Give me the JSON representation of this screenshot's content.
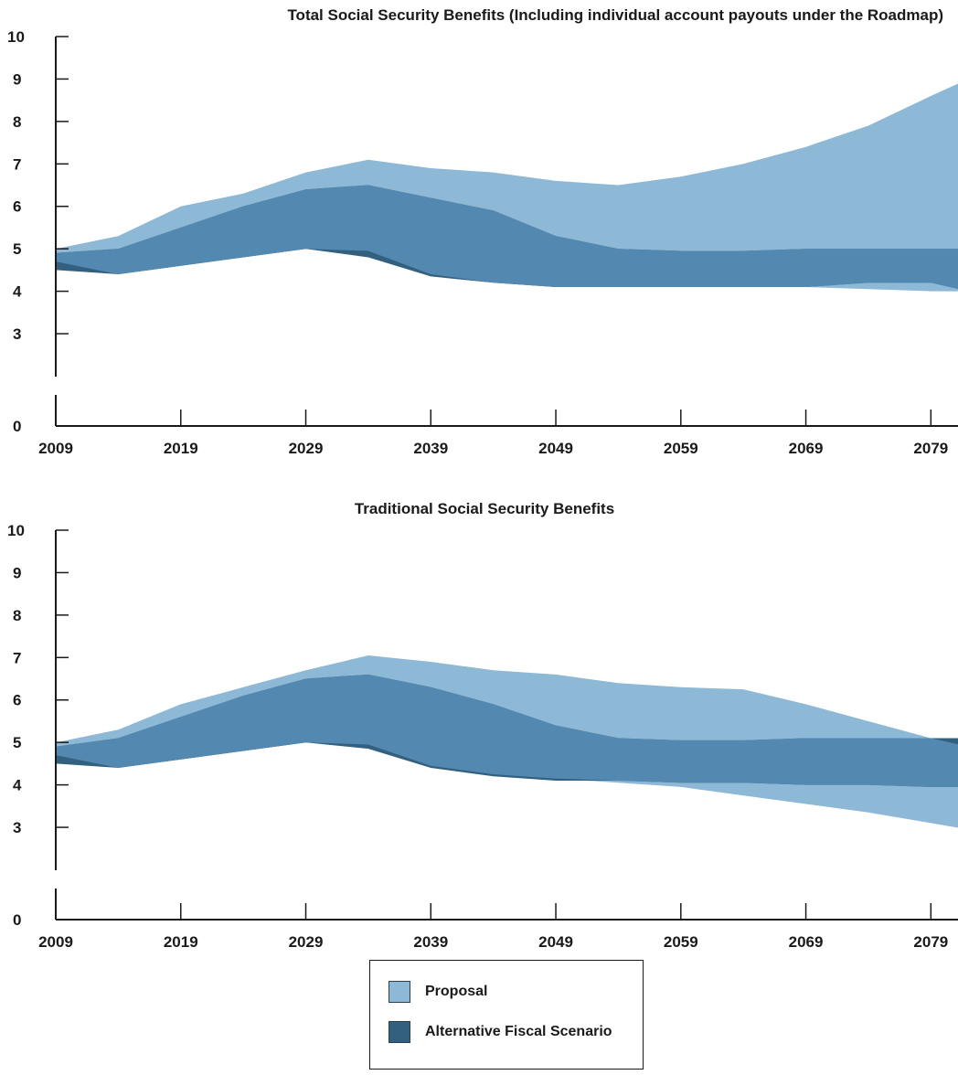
{
  "colors": {
    "proposal": "#8db8d6",
    "alt_scenario": "#33607f",
    "overlap": "#5389b0",
    "axis": "#1a1a1a"
  },
  "legend": {
    "items": [
      {
        "label": "Proposal",
        "color": "#8db8d6"
      },
      {
        "label": "Alternative Fiscal Scenario",
        "color": "#33607f"
      }
    ]
  },
  "chart_data": [
    {
      "type": "area",
      "title": "Total Social Security Benefits (Including individual account payouts under the Roadmap)",
      "xlabel": "",
      "ylabel": "",
      "x_ticks": [
        "2009",
        "2019",
        "2029",
        "2039",
        "2049",
        "2059",
        "2069",
        "2079"
      ],
      "y_ticks": [
        "0",
        "3",
        "4",
        "5",
        "6",
        "7",
        "8",
        "9",
        "10"
      ],
      "xlim": [
        2009,
        2082
      ],
      "ylim": [
        0,
        10
      ],
      "axis_break": true,
      "x": [
        2009,
        2014,
        2019,
        2024,
        2029,
        2034,
        2039,
        2044,
        2049,
        2054,
        2059,
        2064,
        2069,
        2074,
        2079,
        2082
      ],
      "series": [
        {
          "name": "Proposal",
          "upper": [
            5.0,
            5.3,
            6.0,
            6.3,
            6.8,
            7.1,
            6.9,
            6.8,
            6.6,
            6.5,
            6.7,
            7.0,
            7.4,
            7.9,
            8.6,
            9.0
          ],
          "lower": [
            4.7,
            4.4,
            4.6,
            4.8,
            5.0,
            4.95,
            4.4,
            4.2,
            4.1,
            4.1,
            4.1,
            4.1,
            4.1,
            4.05,
            4.0,
            4.0
          ]
        },
        {
          "name": "Alternative Fiscal Scenario",
          "upper": [
            4.9,
            5.0,
            5.5,
            6.0,
            6.4,
            6.5,
            6.2,
            5.9,
            5.3,
            5.0,
            4.95,
            4.95,
            5.0,
            5.0,
            5.0,
            5.0
          ],
          "lower": [
            4.5,
            4.4,
            4.6,
            4.8,
            5.0,
            4.8,
            4.35,
            4.2,
            4.1,
            4.1,
            4.1,
            4.1,
            4.1,
            4.2,
            4.2,
            4.0
          ]
        }
      ]
    },
    {
      "type": "area",
      "title": "Traditional Social Security Benefits",
      "xlabel": "",
      "ylabel": "",
      "x_ticks": [
        "2009",
        "2019",
        "2029",
        "2039",
        "2049",
        "2059",
        "2069",
        "2079"
      ],
      "y_ticks": [
        "0",
        "3",
        "4",
        "5",
        "6",
        "7",
        "8",
        "9",
        "10"
      ],
      "xlim": [
        2009,
        2082
      ],
      "ylim": [
        0,
        10
      ],
      "axis_break": true,
      "x": [
        2009,
        2014,
        2019,
        2024,
        2029,
        2034,
        2039,
        2044,
        2049,
        2054,
        2059,
        2064,
        2069,
        2074,
        2079,
        2082
      ],
      "series": [
        {
          "name": "Proposal",
          "upper": [
            5.0,
            5.3,
            5.9,
            6.3,
            6.7,
            7.05,
            6.9,
            6.7,
            6.6,
            6.4,
            6.3,
            6.25,
            5.9,
            5.5,
            5.1,
            4.9
          ],
          "lower": [
            4.7,
            4.4,
            4.6,
            4.8,
            5.0,
            4.95,
            4.45,
            4.25,
            4.15,
            4.05,
            3.95,
            3.75,
            3.55,
            3.35,
            3.1,
            2.95
          ]
        },
        {
          "name": "Alternative Fiscal Scenario",
          "upper": [
            4.9,
            5.1,
            5.6,
            6.1,
            6.5,
            6.6,
            6.3,
            5.9,
            5.4,
            5.1,
            5.05,
            5.05,
            5.1,
            5.1,
            5.1,
            5.1
          ],
          "lower": [
            4.5,
            4.4,
            4.6,
            4.8,
            5.0,
            4.85,
            4.4,
            4.2,
            4.1,
            4.1,
            4.05,
            4.05,
            4.0,
            4.0,
            3.95,
            3.95
          ]
        }
      ]
    }
  ]
}
